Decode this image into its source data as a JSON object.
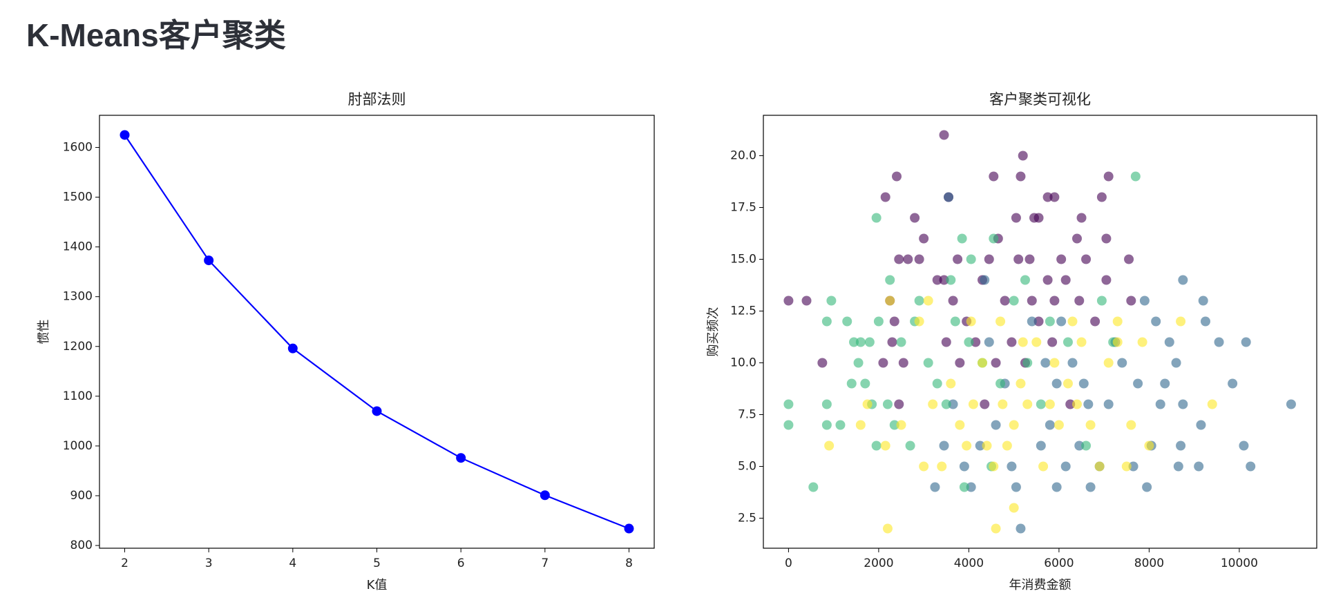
{
  "page_title": "K-Means客户聚类",
  "chart_data": [
    {
      "type": "line",
      "title": "肘部法则",
      "xlabel": "K值",
      "ylabel": "惯性",
      "color": "#0000ff",
      "x": [
        2,
        3,
        4,
        5,
        6,
        7,
        8
      ],
      "values": [
        1625,
        1373,
        1196,
        1070,
        976,
        901,
        834
      ],
      "xlim": [
        1.7,
        8.3
      ],
      "ylim": [
        794.5,
        1664.5
      ],
      "xticks": [
        2,
        3,
        4,
        5,
        6,
        7,
        8
      ],
      "yticks": [
        800,
        900,
        1000,
        1100,
        1200,
        1300,
        1400,
        1500,
        1600
      ]
    },
    {
      "type": "scatter",
      "title": "客户聚类可视化",
      "xlabel": "年消费金额",
      "ylabel": "购买频次",
      "alpha": 0.6,
      "xlim": [
        -558,
        11718
      ],
      "ylim": [
        1.05,
        21.95
      ],
      "xticks": [
        0,
        2000,
        4000,
        6000,
        8000,
        10000
      ],
      "yticks": [
        2.5,
        {
          "value": 5,
          "label": "5.0"
        },
        7.5,
        {
          "value": 10,
          "label": "10.0"
        },
        12.5,
        {
          "value": 15,
          "label": "15.0"
        },
        17.5,
        {
          "value": 20,
          "label": "20.0"
        }
      ],
      "series": [
        {
          "color": "#440154",
          "x": [
            3450,
            5200,
            2400,
            4550,
            5150,
            7100,
            2150,
            3550,
            5750,
            5900,
            6950,
            2800,
            5050,
            5450,
            5550,
            6500,
            3000,
            4650,
            6400,
            7050,
            2450,
            2650,
            2900,
            3750,
            4450,
            5100,
            5350,
            6050,
            6600,
            7550,
            3300,
            3450,
            4300,
            5750,
            6150,
            7050,
            0,
            400,
            2250,
            3650,
            4800,
            5400,
            5900,
            6450,
            7600,
            2350,
            3950,
            5550,
            6800,
            2300,
            3500,
            4150,
            4950,
            5850,
            750,
            2100,
            2550,
            3800,
            4600,
            5250,
            4350,
            2450,
            6250
          ],
          "values": [
            21,
            20,
            19,
            19,
            19,
            19,
            18,
            18,
            18,
            18,
            18,
            17,
            17,
            17,
            17,
            17,
            16,
            16,
            16,
            16,
            15,
            15,
            15,
            15,
            15,
            15,
            15,
            15,
            15,
            15,
            14,
            14,
            14,
            14,
            14,
            14,
            13,
            13,
            13,
            13,
            13,
            13,
            13,
            13,
            13,
            12,
            12,
            12,
            12,
            11,
            11,
            11,
            11,
            11,
            10,
            10,
            10,
            10,
            10,
            10,
            8,
            8,
            8
          ]
        },
        {
          "color": "#31688e",
          "x": [
            11150,
            10250,
            10100,
            10150,
            9850,
            9550,
            9250,
            9200,
            9150,
            9100,
            8750,
            8650,
            8700,
            8750,
            8600,
            8450,
            8350,
            8250,
            8150,
            8050,
            7950,
            7900,
            7750,
            7650,
            7400,
            7250,
            7100,
            6900,
            6700,
            6550,
            6450,
            6300,
            6150,
            5950,
            5800,
            5600,
            5400,
            5150,
            5050,
            4950,
            4800,
            4600,
            4450,
            4250,
            4050,
            3900,
            3650,
            3450,
            3550,
            3250,
            5950,
            6650,
            5700,
            6050,
            4350
          ],
          "values": [
            8,
            5,
            6,
            11,
            9,
            11,
            12,
            13,
            7,
            5,
            14,
            5,
            6,
            8,
            10,
            11,
            9,
            8,
            12,
            6,
            4,
            13,
            9,
            5,
            10,
            11,
            8,
            5,
            4,
            9,
            6,
            10,
            5,
            9,
            7,
            6,
            12,
            2,
            4,
            5,
            9,
            7,
            11,
            6,
            4,
            5,
            8,
            6,
            18,
            4,
            4,
            8,
            10,
            12,
            14
          ]
        },
        {
          "color": "#35b779",
          "x": [
            7700,
            1950,
            3850,
            4550,
            4050,
            5250,
            3600,
            2250,
            0,
            0,
            550,
            850,
            850,
            950,
            850,
            1150,
            1300,
            1400,
            1450,
            1550,
            1600,
            1700,
            1800,
            1850,
            1950,
            2000,
            2200,
            2350,
            2500,
            2700,
            2800,
            2900,
            3100,
            3300,
            3500,
            3700,
            3900,
            4000,
            4300,
            4500,
            4700,
            5000,
            5300,
            5600,
            5800,
            6200,
            6600,
            6950,
            7200
          ],
          "values": [
            19,
            17,
            16,
            16,
            15,
            14,
            14,
            14,
            8,
            7,
            4,
            8,
            7,
            13,
            12,
            7,
            12,
            9,
            11,
            10,
            11,
            9,
            11,
            8,
            6,
            12,
            8,
            7,
            11,
            6,
            12,
            13,
            10,
            9,
            8,
            12,
            4,
            11,
            10,
            5,
            9,
            13,
            10,
            8,
            12,
            11,
            6,
            13,
            11
          ]
        },
        {
          "color": "#fde725",
          "x": [
            2200,
            4600,
            5000,
            900,
            1600,
            1750,
            2150,
            2500,
            3000,
            3200,
            3400,
            3600,
            3800,
            3950,
            4100,
            4300,
            4400,
            4550,
            4750,
            4850,
            5000,
            5150,
            5300,
            5500,
            5650,
            5800,
            6000,
            6200,
            6400,
            6500,
            6700,
            6900,
            7100,
            7300,
            7500,
            7600,
            7850,
            8000,
            8700,
            9400,
            2900,
            3100,
            4700,
            5200,
            5900,
            6300,
            7300,
            2250,
            4050
          ],
          "values": [
            2,
            2,
            3,
            6,
            7,
            8,
            6,
            7,
            5,
            8,
            5,
            9,
            7,
            6,
            8,
            10,
            6,
            5,
            8,
            6,
            7,
            9,
            8,
            11,
            5,
            8,
            7,
            9,
            8,
            11,
            7,
            5,
            10,
            11,
            5,
            7,
            11,
            6,
            12,
            8,
            12,
            13,
            12,
            11,
            10,
            12,
            12,
            13,
            12
          ]
        }
      ]
    }
  ]
}
